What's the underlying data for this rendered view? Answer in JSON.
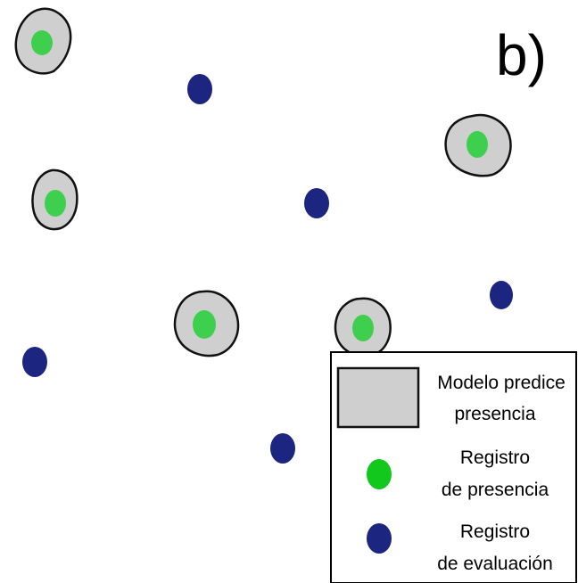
{
  "panel_label": "b)",
  "colors": {
    "predicted_area_fill": "#cfcfcf",
    "predicted_area_stroke": "#111111",
    "presence_record": "#3fcf4f",
    "evaluation_record": "#1c2580",
    "legend_presence_swatch": "#12c81c",
    "legend_border": "#000000",
    "background": "#ffffff"
  },
  "legend": {
    "model_predicts": {
      "line1": "Modelo predice",
      "line2": "presencia"
    },
    "presence_record": {
      "line1": "Registro",
      "line2": "de presencia"
    },
    "evaluation_record": {
      "line1": "Registro",
      "line2": "de evaluación"
    }
  }
}
